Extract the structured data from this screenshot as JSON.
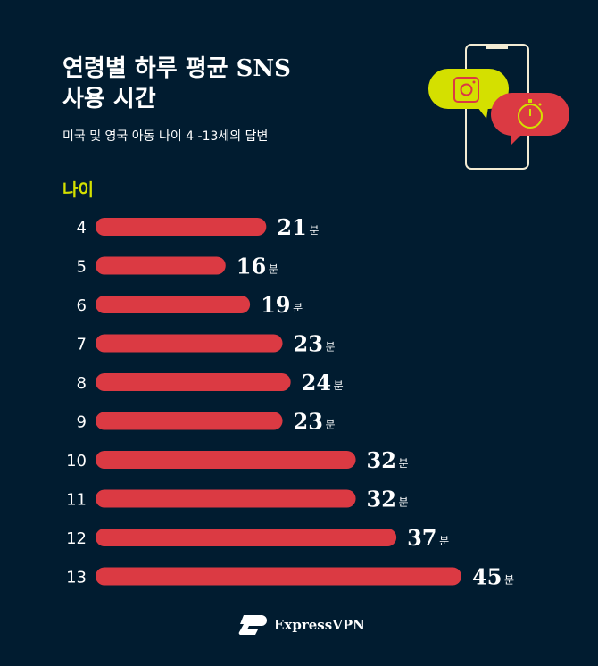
{
  "header": {
    "title_line1": "연령별 하루 평균 SNS",
    "title_line2": "사용 시간",
    "subtitle": "미국 및 영국 아동 나이 4 -13세의 답변"
  },
  "chart_data": {
    "type": "bar",
    "orientation": "horizontal",
    "ylabel": "나이",
    "categories": [
      "4",
      "5",
      "6",
      "7",
      "8",
      "9",
      "10",
      "11",
      "12",
      "13"
    ],
    "values": [
      21,
      16,
      19,
      23,
      24,
      23,
      32,
      32,
      37,
      45
    ],
    "unit": "분",
    "bar_color": "#db3a43"
  },
  "icons": [
    "phone-icon",
    "instagram-icon",
    "stopwatch-icon"
  ],
  "colors": {
    "background": "#011c30",
    "accent_yellow": "#d4e000",
    "accent_red": "#db3a43",
    "cream": "#f2ebd3"
  },
  "brand": {
    "name": "ExpressVPN"
  }
}
